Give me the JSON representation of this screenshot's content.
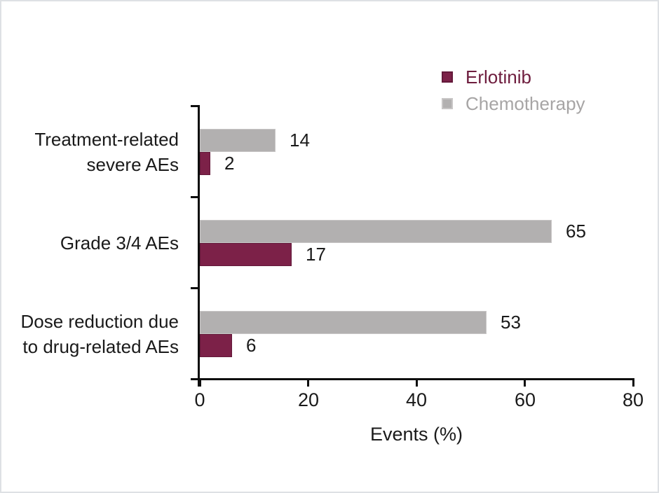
{
  "frame": {
    "background": "#ffffff",
    "border_color": "#dee1e4"
  },
  "chart_data": {
    "type": "bar",
    "orientation": "horizontal",
    "title": "",
    "xlabel": "Events (%)",
    "xlim": [
      0,
      80
    ],
    "xticks": [
      0,
      20,
      40,
      60,
      80
    ],
    "grid": false,
    "legend_position": "top-right",
    "value_labels_shown": true,
    "axis_color": "#0d0d0d",
    "text_color": "#1a1a1a",
    "categories": [
      {
        "lines": [
          "Treatment-related",
          "severe AEs"
        ]
      },
      {
        "lines": [
          "Grade 3/4 AEs"
        ]
      },
      {
        "lines": [
          "Dose reduction due",
          "to drug-related AEs"
        ]
      }
    ],
    "series": [
      {
        "name": "Erlotinib",
        "values": [
          2,
          17,
          6
        ],
        "color": "#7c2148",
        "border_color": "#63193a",
        "label_color": "#6e1d3e"
      },
      {
        "name": "Chemotherapy",
        "values": [
          14,
          65,
          53
        ],
        "color": "#b2b0b0",
        "border_color": "#c8c6c6",
        "label_color": "#a7a5a5"
      }
    ],
    "series_display_order_top_to_bottom": [
      "Chemotherapy",
      "Erlotinib"
    ]
  }
}
